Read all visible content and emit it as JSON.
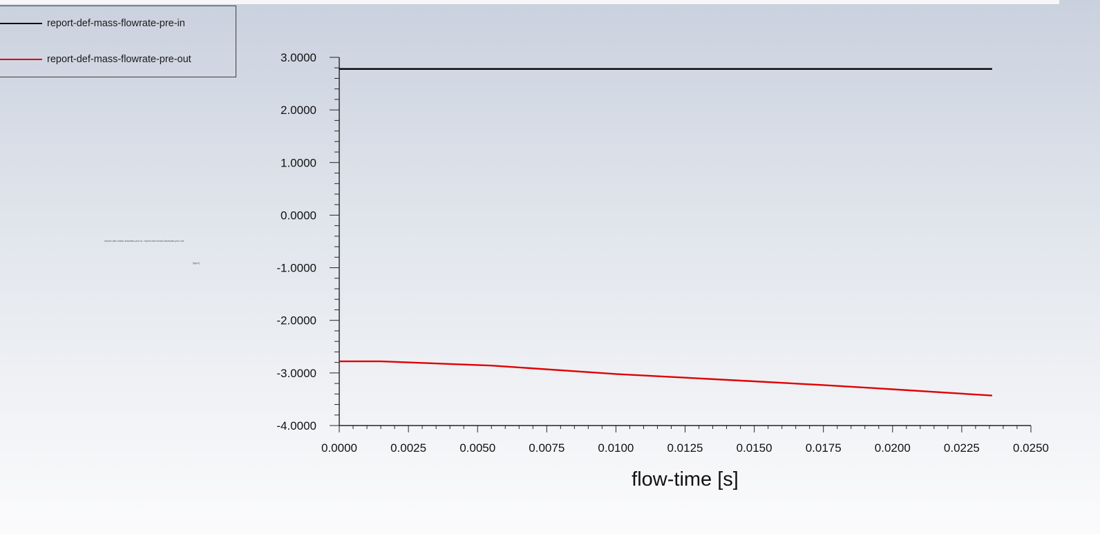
{
  "chart_data": {
    "type": "line",
    "xlabel": "flow-time [s]",
    "ylabel": "",
    "xlim": [
      0.0,
      0.025
    ],
    "ylim": [
      -4.0,
      3.0
    ],
    "x_ticks": [
      "0.0000",
      "0.0025",
      "0.0050",
      "0.0075",
      "0.0100",
      "0.0125",
      "0.0150",
      "0.0175",
      "0.0200",
      "0.0225",
      "0.0250"
    ],
    "y_ticks": [
      "3.0000",
      "2.0000",
      "1.0000",
      "0.0000",
      "-1.0000",
      "-2.0000",
      "-3.0000",
      "-4.0000"
    ],
    "legend_position": "top-left",
    "grid": false,
    "series": [
      {
        "name": "report-def-mass-flowrate-pre-in",
        "color": "#000000",
        "x": [
          0.0,
          0.0236
        ],
        "y": [
          2.78,
          2.78
        ]
      },
      {
        "name": "report-def-mass-flowrate-pre-out",
        "color": "#e00000",
        "x": [
          0.0,
          0.0015,
          0.0055,
          0.01,
          0.0125,
          0.015,
          0.0175,
          0.02,
          0.0236
        ],
        "y": [
          -2.78,
          -2.78,
          -2.86,
          -3.02,
          -3.09,
          -3.16,
          -3.23,
          -3.31,
          -3.43
        ]
      }
    ]
  },
  "minor_text": {
    "top": "report-def-mass-flowrate-pre-in, report-def-mass-flowrate-pre-out",
    "bottom": "[kg/s]"
  }
}
